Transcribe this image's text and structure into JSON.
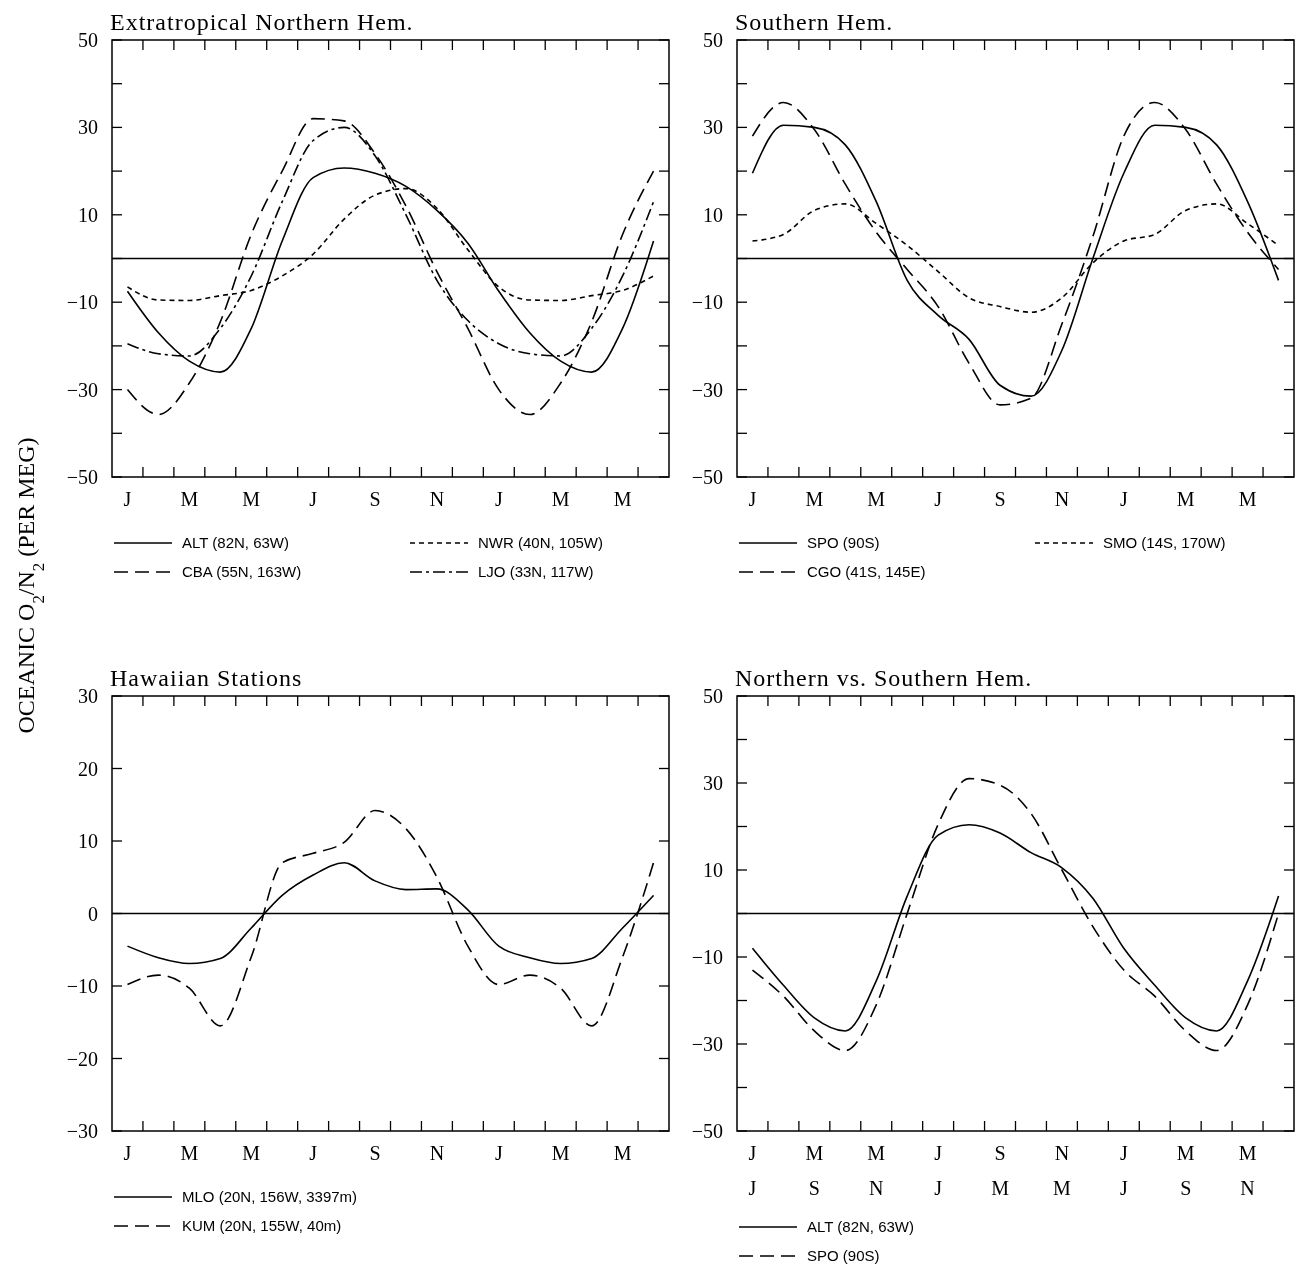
{
  "chart_data": [
    {
      "type": "line",
      "title": "Extratropical Northern Hem.",
      "ylabel": "OCEANIC O$_{2}$/N$_{2}$ (PER MEG)",
      "categories": [
        "J",
        null,
        "M",
        null,
        "M",
        null,
        "J",
        null,
        "S",
        null,
        "N",
        null,
        "J",
        null,
        "M",
        null,
        "M",
        null
      ],
      "ylim": [
        -50,
        50
      ],
      "yticks": [
        -50,
        {
          "value": -40,
          "label": null
        },
        -30,
        {
          "value": -20,
          "label": null
        },
        -10,
        {
          "value": 0,
          "label": null
        },
        10,
        {
          "value": 20,
          "label": null
        },
        30,
        {
          "value": 40,
          "label": null
        },
        50
      ],
      "legend": "bottom",
      "ref_lines": [
        {
          "axis": "y",
          "value": 0
        }
      ],
      "series": [
        {
          "name": "ALT (82N, 63W)",
          "color": "#000000",
          "line_style": "solid",
          "values": [
            -7.5,
            -17,
            -23.5,
            -26,
            -16,
            4,
            18.5,
            20.7,
            19.5,
            16.5,
            11,
            3.5,
            -7.5,
            -17,
            -23.5,
            -26,
            -16,
            4
          ]
        },
        {
          "name": "CBA (55N, 163W)",
          "color": "#000000",
          "line_style": "dashed",
          "values": [
            -30,
            -35.7,
            -28.5,
            -14.5,
            5.5,
            20,
            32,
            31.5,
            24,
            12,
            -3,
            -16,
            -30,
            -35.7,
            -28.5,
            -14.5,
            5.5,
            20
          ]
        },
        {
          "name": "NWR (40N, 105W)",
          "color": "#000000",
          "line_style": "dotted",
          "values": [
            -6.5,
            -9.5,
            -9.6,
            -8.5,
            -7.3,
            -4,
            1,
            9,
            14.5,
            16,
            11.5,
            2,
            -6.5,
            -9.5,
            -9.6,
            -8.5,
            -7.3,
            -4
          ]
        },
        {
          "name": "LJO (33N, 117W)",
          "color": "#000000",
          "line_style": "dashdot",
          "values": [
            -19.5,
            -21.8,
            -22.3,
            -16,
            -4,
            13,
            27,
            30,
            23.5,
            10,
            -5,
            -14.2,
            -19.5,
            -21.8,
            -22.3,
            -16,
            -4,
            13
          ]
        }
      ]
    },
    {
      "type": "line",
      "title": "Southern Hem.",
      "categories": [
        "J",
        null,
        "M",
        null,
        "M",
        null,
        "J",
        null,
        "S",
        null,
        "N",
        null,
        "J",
        null,
        "M",
        null,
        "M",
        null
      ],
      "ylim": [
        -50,
        50
      ],
      "yticks": [
        -50,
        {
          "value": -40,
          "label": null
        },
        -30,
        {
          "value": -20,
          "label": null
        },
        -10,
        {
          "value": 0,
          "label": null
        },
        10,
        {
          "value": 20,
          "label": null
        },
        30,
        {
          "value": 40,
          "label": null
        },
        50
      ],
      "legend": "bottom",
      "ref_lines": [
        {
          "axis": "y",
          "value": 0
        }
      ],
      "series": [
        {
          "name": "SPO (90S)",
          "color": "#000000",
          "line_style": "solid",
          "values": [
            19.5,
            30.5,
            30,
            26,
            13,
            -5,
            -13,
            -18.5,
            -29,
            -31.5,
            -21,
            0,
            19.5,
            30.5,
            30,
            26,
            13,
            -5
          ]
        },
        {
          "name": "CGO (41S, 145E)",
          "color": "#000000",
          "line_style": "dashed",
          "values": [
            28,
            35.7,
            29.5,
            17,
            6,
            -2.5,
            -11,
            -24,
            -33.5,
            -32,
            -15,
            5,
            28,
            35.7,
            29.5,
            17,
            6,
            -2.5
          ]
        },
        {
          "name": "SMO (14S, 170W)",
          "color": "#000000",
          "line_style": "dotted",
          "values": [
            4,
            5.5,
            11,
            12.5,
            8,
            3,
            -3,
            -9,
            -11,
            -12.3,
            -9,
            -1,
            4,
            5.5,
            11,
            12.5,
            8,
            3
          ]
        }
      ]
    },
    {
      "type": "line",
      "title": "Hawaiian Stations",
      "categories": [
        "J",
        null,
        "M",
        null,
        "M",
        null,
        "J",
        null,
        "S",
        null,
        "N",
        null,
        "J",
        null,
        "M",
        null,
        "M",
        null
      ],
      "ylim": [
        -30,
        30
      ],
      "yticks": [
        -30,
        -20,
        -10,
        0,
        10,
        20,
        30
      ],
      "legend": "bottom",
      "ref_lines": [
        {
          "axis": "y",
          "value": 0
        }
      ],
      "series": [
        {
          "name": "MLO (20N, 156W, 3397m)",
          "color": "#000000",
          "line_style": "solid",
          "values": [
            -4.5,
            -6.1,
            -6.9,
            -6.2,
            -2,
            2.5,
            5.3,
            7,
            4.5,
            3.3,
            3.4,
            0.5,
            -4.5,
            -6.1,
            -6.9,
            -6.2,
            -2,
            2.5
          ]
        },
        {
          "name": "KUM (20N, 155W, 40m)",
          "color": "#000000",
          "line_style": "dashed",
          "values": [
            -9.8,
            -8.5,
            -10.3,
            -15.5,
            -6,
            7,
            8.3,
            9.8,
            14.2,
            11.7,
            5,
            -4.5,
            -9.8,
            -8.5,
            -10.3,
            -15.5,
            -6,
            7
          ]
        }
      ]
    },
    {
      "type": "line",
      "title": "Northern vs. Southern Hem.",
      "categories": [
        "J\nJ",
        null,
        "M\nS",
        null,
        "M\nN",
        null,
        "J\nJ",
        null,
        "S\nM",
        null,
        "N\nM",
        null,
        "J\nJ",
        null,
        "M\nS",
        null,
        "M\nN",
        null
      ],
      "ylim": [
        -50,
        50
      ],
      "yticks": [
        -50,
        {
          "value": -40,
          "label": null
        },
        -30,
        {
          "value": -20,
          "label": null
        },
        -10,
        {
          "value": 0,
          "label": null
        },
        10,
        {
          "value": 20,
          "label": null
        },
        30,
        {
          "value": 40,
          "label": null
        },
        50
      ],
      "legend": "bottom",
      "ref_lines": [
        {
          "axis": "y",
          "value": 0
        }
      ],
      "series": [
        {
          "name": "ALT (82N, 63W)",
          "color": "#000000",
          "line_style": "solid",
          "values": [
            -8,
            -16.5,
            -24,
            -27,
            -15.5,
            4,
            18,
            20.4,
            18.5,
            14,
            10.5,
            3.5,
            -8,
            -16.5,
            -24,
            -27,
            -15.5,
            4
          ]
        },
        {
          "name": "SPO (90S)",
          "color": "#000000",
          "line_style": "dashed",
          "values": [
            -13,
            -19,
            -27,
            -31.5,
            -21,
            0,
            20.5,
            31,
            29.5,
            23,
            10,
            -3,
            -13,
            -19,
            -27,
            -31.5,
            -21,
            0
          ]
        }
      ]
    }
  ]
}
